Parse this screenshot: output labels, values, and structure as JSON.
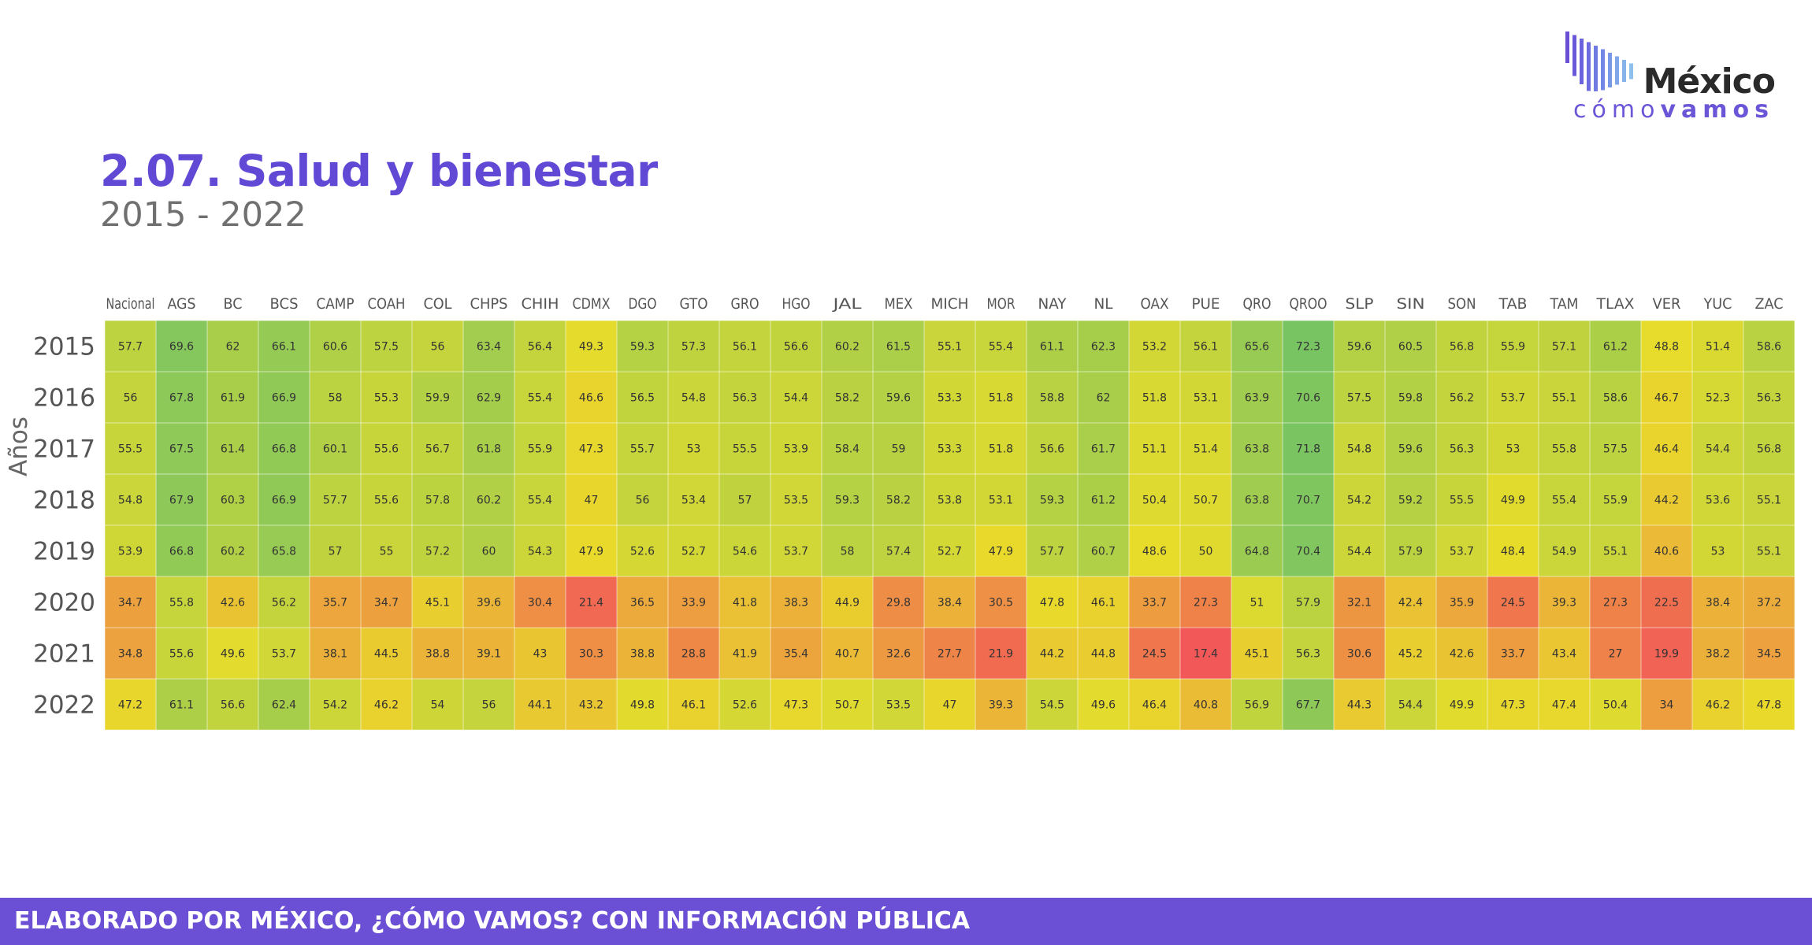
{
  "logo": {
    "word": "México",
    "tag_part1": "cómo",
    "tag_part2": "vamos"
  },
  "header": {
    "title": "2.07. Salud y bienestar",
    "subtitle": "2015 - 2022"
  },
  "footer": {
    "text": "ELABORADO POR MÉXICO, ¿CÓMO VAMOS? CON INFORMACIÓN PÚBLICA"
  },
  "colors": {
    "accent": "#6149d6",
    "footer_bg": "#6b50d6",
    "scale_low": "#f25858",
    "scale_mid": "#e8dc2a",
    "scale_high": "#78c463"
  },
  "chart_data": {
    "type": "heatmap",
    "title": "2.07. Salud y bienestar",
    "subtitle": "2015 - 2022",
    "ylabel": "Años",
    "xlabel": "",
    "legend": "none",
    "grid": true,
    "columns": [
      "Nacional",
      "AGS",
      "BC",
      "BCS",
      "CAMP",
      "COAH",
      "COL",
      "CHPS",
      "CHIH",
      "CDMX",
      "DGO",
      "GTO",
      "GRO",
      "HGO",
      "JAL",
      "MEX",
      "MICH",
      "MOR",
      "NAY",
      "NL",
      "OAX",
      "PUE",
      "QRO",
      "QROO",
      "SLP",
      "SIN",
      "SON",
      "TAB",
      "TAM",
      "TLAX",
      "VER",
      "YUC",
      "ZAC"
    ],
    "rows": [
      "2015",
      "2016",
      "2017",
      "2018",
      "2019",
      "2020",
      "2021",
      "2022"
    ],
    "values": [
      [
        57.7,
        69.6,
        62,
        66.1,
        60.6,
        57.5,
        56,
        63.4,
        56.4,
        49.3,
        59.3,
        57.3,
        56.1,
        56.6,
        60.2,
        61.5,
        55.1,
        55.4,
        61.1,
        62.3,
        53.2,
        56.1,
        65.6,
        72.3,
        59.6,
        60.5,
        56.8,
        55.9,
        57.1,
        61.2,
        48.8,
        51.4,
        58.6
      ],
      [
        56,
        67.8,
        61.9,
        66.9,
        58,
        55.3,
        59.9,
        62.9,
        55.4,
        46.6,
        56.5,
        54.8,
        56.3,
        54.4,
        58.2,
        59.6,
        53.3,
        51.8,
        58.8,
        62,
        51.8,
        53.1,
        63.9,
        70.6,
        57.5,
        59.8,
        56.2,
        53.7,
        55.1,
        58.6,
        46.7,
        52.3,
        56.3
      ],
      [
        55.5,
        67.5,
        61.4,
        66.8,
        60.1,
        55.6,
        56.7,
        61.8,
        55.9,
        47.3,
        55.7,
        53,
        55.5,
        53.9,
        58.4,
        59,
        53.3,
        51.8,
        56.6,
        61.7,
        51.1,
        51.4,
        63.8,
        71.8,
        54.8,
        59.6,
        56.3,
        53,
        55.8,
        57.5,
        46.4,
        54.4,
        56.8
      ],
      [
        54.8,
        67.9,
        60.3,
        66.9,
        57.7,
        55.6,
        57.8,
        60.2,
        55.4,
        47,
        56,
        53.4,
        57,
        53.5,
        59.3,
        58.2,
        53.8,
        53.1,
        59.3,
        61.2,
        50.4,
        50.7,
        63.8,
        70.7,
        54.2,
        59.2,
        55.5,
        49.9,
        55.4,
        55.9,
        44.2,
        53.6,
        55.1
      ],
      [
        53.9,
        66.8,
        60.2,
        65.8,
        57,
        55,
        57.2,
        60,
        54.3,
        47.9,
        52.6,
        52.7,
        54.6,
        53.7,
        58,
        57.4,
        52.7,
        47.9,
        57.7,
        60.7,
        48.6,
        50,
        64.8,
        70.4,
        54.4,
        57.9,
        53.7,
        48.4,
        54.9,
        55.1,
        40.6,
        53,
        55.1
      ],
      [
        34.7,
        55.8,
        42.6,
        56.2,
        35.7,
        34.7,
        45.1,
        39.6,
        30.4,
        21.4,
        36.5,
        33.9,
        41.8,
        38.3,
        44.9,
        29.8,
        38.4,
        30.5,
        47.8,
        46.1,
        33.7,
        27.3,
        51,
        57.9,
        32.1,
        42.4,
        35.9,
        24.5,
        39.3,
        27.3,
        22.5,
        38.4,
        37.2
      ],
      [
        34.8,
        55.6,
        49.6,
        53.7,
        38.1,
        44.5,
        38.8,
        39.1,
        43,
        30.3,
        38.8,
        28.8,
        41.9,
        35.4,
        40.7,
        32.6,
        27.7,
        21.9,
        44.2,
        44.8,
        24.5,
        17.4,
        45.1,
        56.3,
        30.6,
        45.2,
        42.6,
        33.7,
        43.4,
        27,
        19.9,
        38.2,
        34.5
      ],
      [
        47.2,
        61.1,
        56.6,
        62.4,
        54.2,
        46.2,
        54,
        56,
        44.1,
        43.2,
        49.8,
        46.1,
        52.6,
        47.3,
        50.7,
        53.5,
        47,
        39.3,
        54.5,
        49.6,
        46.4,
        40.8,
        56.9,
        67.7,
        44.3,
        54.4,
        49.9,
        47.3,
        47.4,
        50.4,
        34,
        46.2,
        47.8
      ]
    ]
  }
}
